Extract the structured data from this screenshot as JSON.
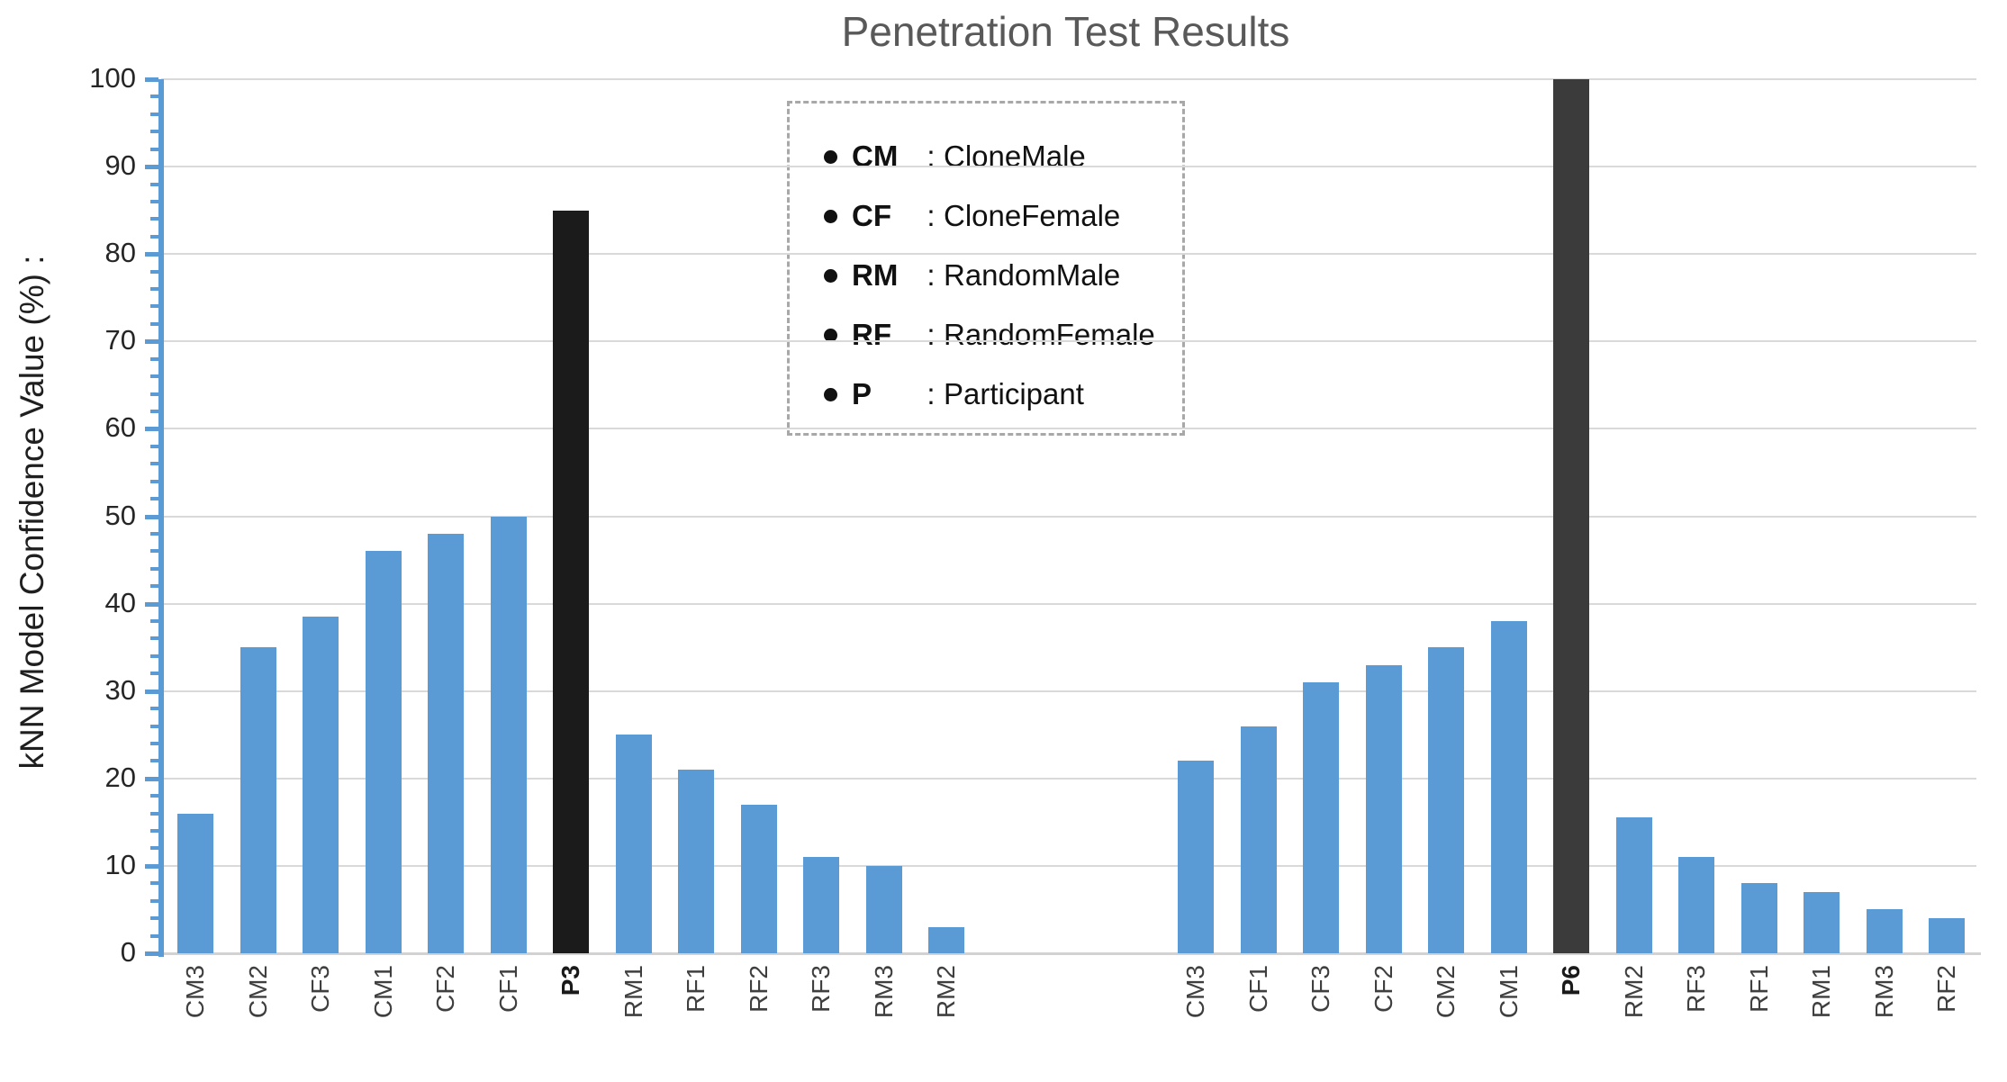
{
  "chart_data": {
    "type": "bar",
    "title": "Penetration Test Results",
    "ylabel": "kNN Model Confidence Value (%) :",
    "xlabel": "",
    "ylim": [
      0,
      100
    ],
    "ytick_interval": 10,
    "minor_tick_interval": 2,
    "grid": "horizontal",
    "legend_position": "top-center-inside",
    "legend_separator": ":",
    "legend": [
      {
        "abbr": "CM",
        "label": "CloneMale"
      },
      {
        "abbr": "CF",
        "label": "CloneFemale"
      },
      {
        "abbr": "RM",
        "label": "RandomMale"
      },
      {
        "abbr": "RF",
        "label": "RandomFemale"
      },
      {
        "abbr": "P",
        "label": "Participant"
      }
    ],
    "colors": {
      "bar_normal": "#5b9bd5",
      "bar_p3": "#1b1b1b",
      "bar_p6": "#3b3b3b",
      "axis": "#5b9bd5",
      "gridline": "#d9d9d9",
      "title_text": "#595959"
    },
    "groups": [
      {
        "name": "P3",
        "categories": [
          "CM3",
          "CM2",
          "CF3",
          "CM1",
          "CF2",
          "CF1",
          "P3",
          "RM1",
          "RF1",
          "RF2",
          "RF3",
          "RM3",
          "RM2"
        ],
        "values": [
          16,
          35,
          38.5,
          46,
          48,
          50,
          85,
          25,
          21,
          17,
          11,
          10,
          3
        ],
        "emphasized": "P3"
      },
      {
        "name": "P6",
        "categories": [
          "CM3",
          "CF1",
          "CF3",
          "CF2",
          "CM2",
          "CM1",
          "P6",
          "RM2",
          "RF3",
          "RF1",
          "RM1",
          "RM3",
          "RF2"
        ],
        "values": [
          22,
          26,
          31,
          33,
          35,
          38,
          100,
          15.5,
          11,
          8,
          7,
          5,
          4
        ],
        "emphasized": "P6"
      }
    ]
  }
}
